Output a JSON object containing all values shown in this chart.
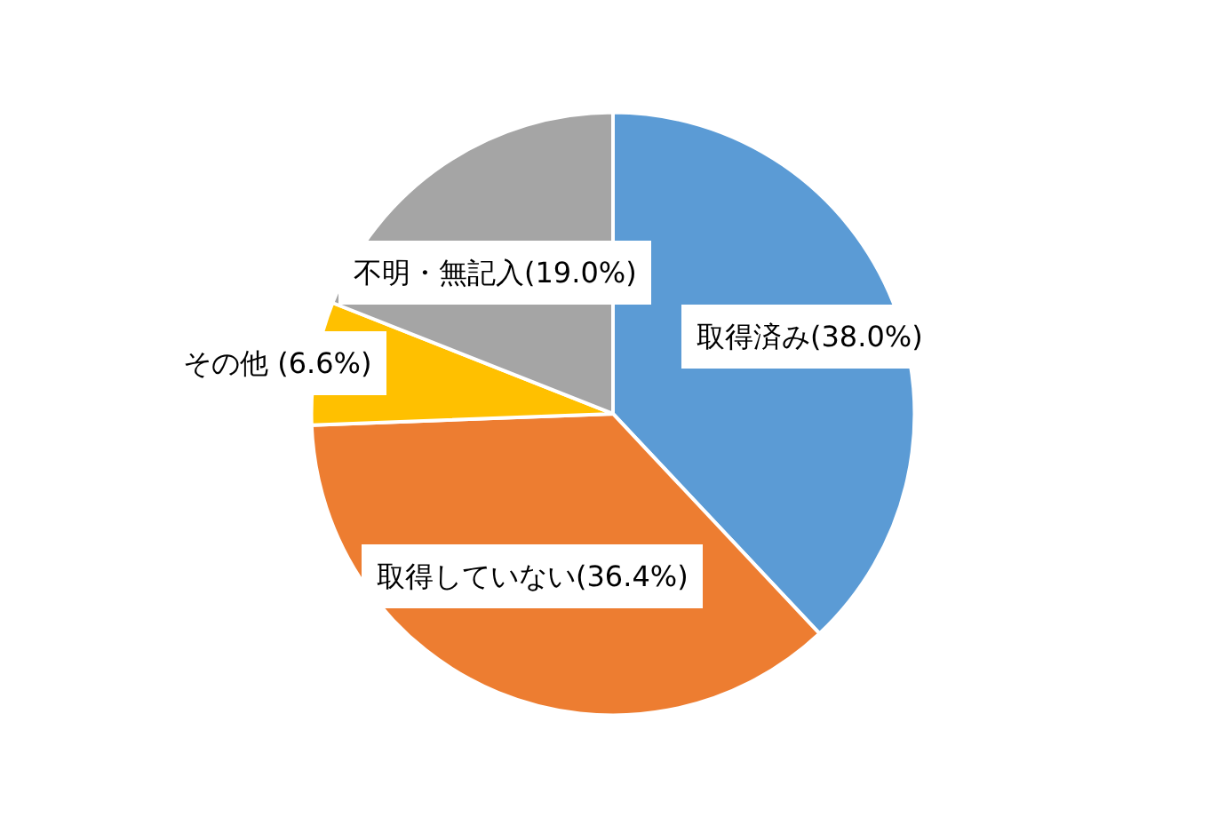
{
  "chart_data": {
    "type": "pie",
    "categories": [
      "取得済み(38.0%)",
      "取得していない(36.4%)",
      "その他 (6.6%)",
      "不明・無記入(19.0%)"
    ],
    "values": [
      38.0,
      36.4,
      6.6,
      19.0
    ],
    "colors": [
      "#5b9bd5",
      "#ed7d31",
      "#ffc000",
      "#a5a5a5"
    ],
    "legend": false
  }
}
